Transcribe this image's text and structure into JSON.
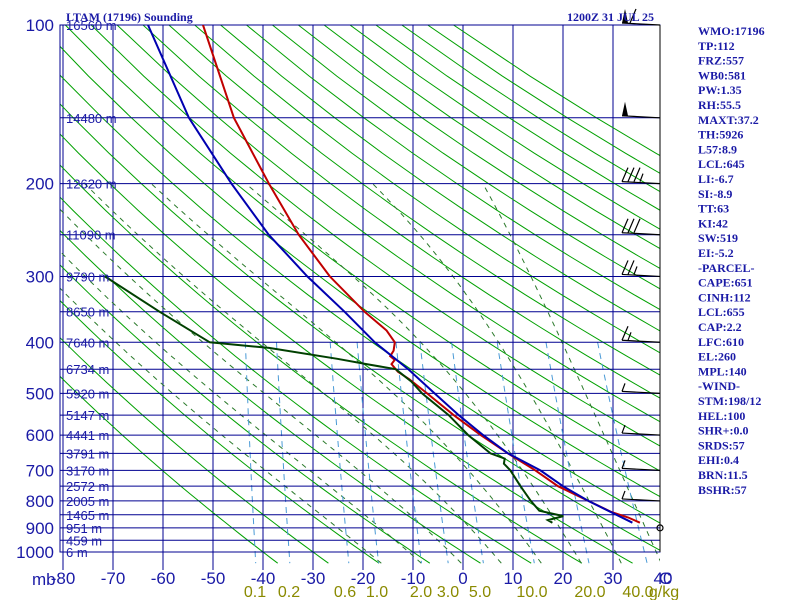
{
  "chart_data": {
    "type": "skew-t sounding",
    "title": "LTAM (17196) Sounding",
    "time_label": "1200Z 31 JUL 25",
    "pressure_unit": "mb",
    "pressure_range_mb": [
      100,
      1000
    ],
    "temperature_range_c": [
      -80,
      40
    ],
    "pressure_ticks": [
      "100",
      "200",
      "300",
      "400",
      "500",
      "600",
      "700",
      "800",
      "900",
      "1000"
    ],
    "temperature_ticks": [
      "-80",
      "-70",
      "-60",
      "-50",
      "-40",
      "-30",
      "-20",
      "-10",
      "0",
      "10",
      "20",
      "30",
      "40",
      "C"
    ],
    "mixing_ratio_labels": [
      "0.1",
      "0.2",
      "0.6",
      "1.0",
      "2.0",
      "3.0",
      "5.0",
      "10.0",
      "20.0",
      "40.0",
      "g/kg"
    ],
    "height_labels": [
      {
        "p": 100,
        "text": "16560 m"
      },
      {
        "p": 150,
        "text": "14480 m"
      },
      {
        "p": 200,
        "text": "12620 m"
      },
      {
        "p": 250,
        "text": "11090 m"
      },
      {
        "p": 300,
        "text": "9790 m"
      },
      {
        "p": 350,
        "text": "8650 m"
      },
      {
        "p": 400,
        "text": "7640 m"
      },
      {
        "p": 450,
        "text": "6734 m"
      },
      {
        "p": 500,
        "text": "5920 m"
      },
      {
        "p": 550,
        "text": "5147 m"
      },
      {
        "p": 600,
        "text": "4441 m"
      },
      {
        "p": 650,
        "text": "3791 m"
      },
      {
        "p": 700,
        "text": "3170 m"
      },
      {
        "p": 750,
        "text": "2572 m"
      },
      {
        "p": 800,
        "text": "2005 m"
      },
      {
        "p": 850,
        "text": "1465 m"
      },
      {
        "p": 900,
        "text": "951 m"
      },
      {
        "p": 950,
        "text": "459 m"
      },
      {
        "p": 1000,
        "text": "6 m"
      }
    ],
    "series": [
      {
        "name": "Temperature",
        "color": "#c00000",
        "points": [
          [
            880,
            34.5
          ],
          [
            860,
            32
          ],
          [
            840,
            28.5
          ],
          [
            800,
            23.5
          ],
          [
            750,
            17
          ],
          [
            700,
            12
          ],
          [
            650,
            6
          ],
          [
            600,
            0
          ],
          [
            550,
            -6
          ],
          [
            500,
            -12
          ],
          [
            470,
            -16
          ],
          [
            455,
            -18.5
          ],
          [
            440,
            -20
          ],
          [
            432,
            -19.5
          ],
          [
            425,
            -20.5
          ],
          [
            415,
            -20
          ],
          [
            400,
            -20
          ],
          [
            380,
            -22
          ],
          [
            350,
            -27
          ],
          [
            300,
            -35
          ],
          [
            250,
            -42.5
          ],
          [
            200,
            -50
          ],
          [
            150,
            -59
          ],
          [
            100,
            -68
          ]
        ]
      },
      {
        "name": "Dewpoint",
        "color": "#004000",
        "points": [
          [
            880,
            17
          ],
          [
            870,
            16
          ],
          [
            855,
            19
          ],
          [
            835,
            14
          ],
          [
            800,
            12
          ],
          [
            750,
            9.5
          ],
          [
            700,
            7
          ],
          [
            680,
            5.5
          ],
          [
            665,
            5.5
          ],
          [
            650,
            2.5
          ],
          [
            600,
            -2.5
          ],
          [
            550,
            -7
          ],
          [
            500,
            -13
          ],
          [
            475,
            -15.5
          ],
          [
            450,
            -19
          ],
          [
            440,
            -25
          ],
          [
            430,
            -31
          ],
          [
            410,
            -45
          ],
          [
            400,
            -57
          ],
          [
            350,
            -68
          ],
          [
            300,
            -80
          ]
        ]
      },
      {
        "name": "Parcel",
        "color": "#0000b0",
        "points": [
          [
            880,
            33
          ],
          [
            800,
            23.5
          ],
          [
            750,
            18
          ],
          [
            700,
            13
          ],
          [
            650,
            6
          ],
          [
            600,
            0.5
          ],
          [
            550,
            -5
          ],
          [
            500,
            -10.5
          ],
          [
            450,
            -16.5
          ],
          [
            400,
            -24
          ],
          [
            350,
            -31
          ],
          [
            300,
            -39.5
          ],
          [
            250,
            -48.5
          ],
          [
            200,
            -57.5
          ],
          [
            150,
            -68
          ],
          [
            100,
            -79
          ]
        ]
      }
    ],
    "wind_barbs": [
      {
        "p": 100,
        "speed": 60
      },
      {
        "p": 150,
        "speed": 50
      },
      {
        "p": 200,
        "speed": 35
      },
      {
        "p": 250,
        "speed": 30
      },
      {
        "p": 300,
        "speed": 25
      },
      {
        "p": 400,
        "speed": 15
      },
      {
        "p": 500,
        "speed": 5
      },
      {
        "p": 600,
        "speed": 5
      },
      {
        "p": 700,
        "speed": 5
      },
      {
        "p": 800,
        "speed": 5
      },
      {
        "p": 900,
        "speed": 0
      }
    ],
    "indices": [
      "WMO:17196",
      "TP:112",
      "FRZ:557",
      "WB0:581",
      "PW:1.35",
      "RH:55.5",
      "MAXT:37.2",
      "TH:5926",
      "L57:8.9",
      "LCL:645",
      "LI:-6.7",
      "SI:-8.9",
      "TT:63",
      "KI:42",
      "SW:519",
      "EI:-5.2",
      "-PARCEL-",
      "CAPE:651",
      "CINH:112",
      "LCL:655",
      "CAP:2.2",
      "LFC:610",
      "EL:260",
      "MPL:140",
      "-WIND-",
      "STM:198/12",
      "HEL:100",
      "SHR+:0.0",
      "SRDS:57",
      "EHI:0.4",
      "BRN:11.5",
      "BSHR:57"
    ],
    "colors": {
      "grid": "#000090",
      "dry_adiabat": "#00a000",
      "moist_adiabat": "#2b7a2b",
      "mixing_ratio": "#4a9ad6",
      "text": "#1a1aa6"
    }
  }
}
